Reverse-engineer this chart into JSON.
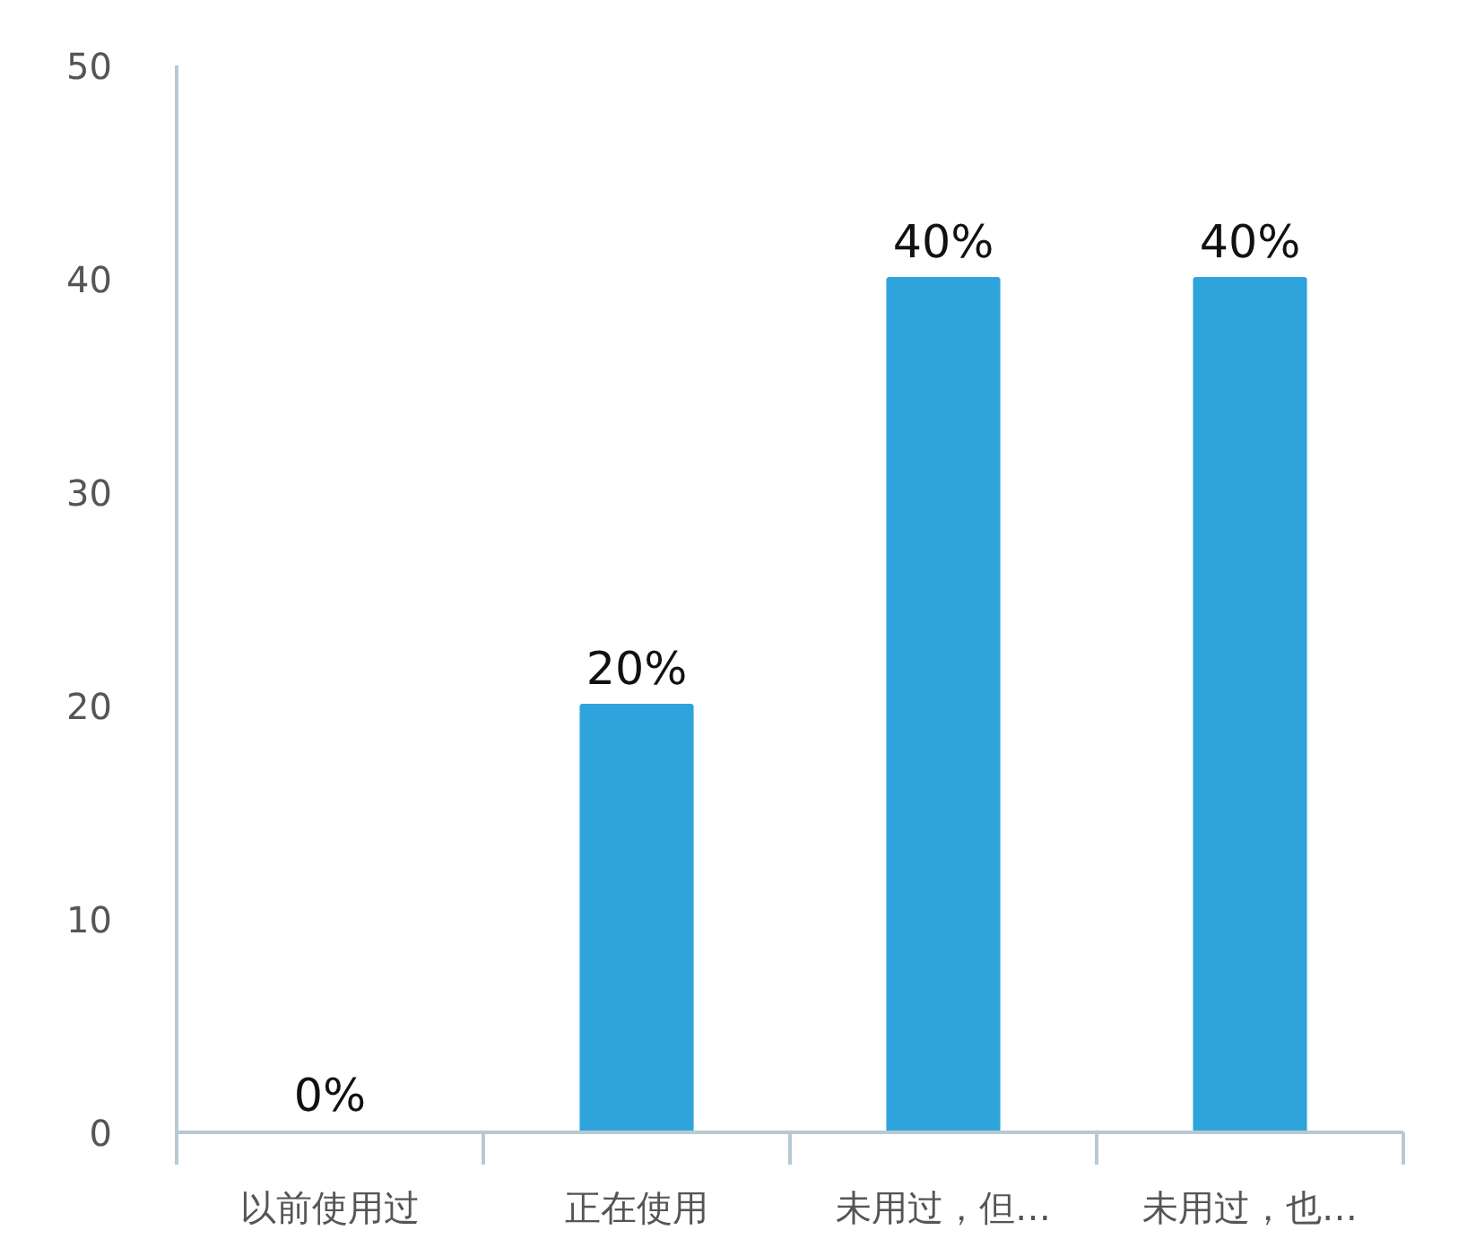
{
  "chart_data": {
    "type": "bar",
    "categories": [
      "以前使用过",
      "正在使用",
      "未用过，但…",
      "未用过，也…"
    ],
    "values": [
      0,
      20,
      40,
      40
    ],
    "value_labels": [
      "0%",
      "20%",
      "40%",
      "40%"
    ],
    "color": "#2fa4dc",
    "ylim": [
      0,
      50
    ],
    "yticks": [
      0,
      10,
      20,
      30,
      40,
      50
    ],
    "grid": false
  }
}
